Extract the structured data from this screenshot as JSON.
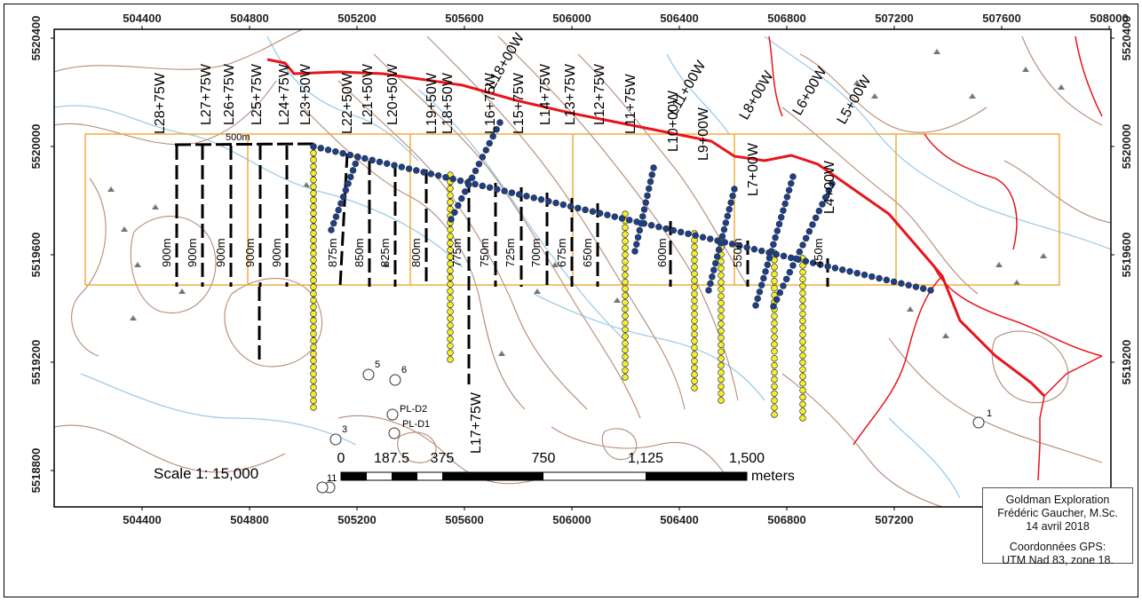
{
  "map": {
    "x_ticks": [
      "504400",
      "504800",
      "505200",
      "505600",
      "506000",
      "506400",
      "506800",
      "507200",
      "507600",
      "508000"
    ],
    "x_ticks_bottom": [
      "504400",
      "504800",
      "505200",
      "505600",
      "506000",
      "506400",
      "506800",
      "507200"
    ],
    "y_ticks": [
      "5520400",
      "5520000",
      "5519600",
      "5519200",
      "5518800"
    ],
    "y_ticks_right": [
      "5520400",
      "5520000",
      "5519600",
      "5519200"
    ],
    "lines": [
      {
        "label": "L28+75W",
        "length": "900m"
      },
      {
        "label": "L27+75W",
        "length": "900m"
      },
      {
        "label": "L26+75W",
        "length": "900m"
      },
      {
        "label": "L25+75W",
        "length": "900m"
      },
      {
        "label": "L24+75W",
        "length": "900m"
      },
      {
        "label": "L23+50W",
        "length": ""
      },
      {
        "label": "L22+50W",
        "length": "875m"
      },
      {
        "label": "L21+50W",
        "length": "850m"
      },
      {
        "label": "L20+50W",
        "length": "825m"
      },
      {
        "label": "L19+50W",
        "length": "800m"
      },
      {
        "label": "L18+50W",
        "length": "775m"
      },
      {
        "label": "L18+00W",
        "length": ""
      },
      {
        "label": "L17+75W",
        "length": "750m"
      },
      {
        "label": "L16+75W",
        "length": "725m"
      },
      {
        "label": "L15+75W",
        "length": ""
      },
      {
        "label": "L14+75W",
        "length": "700m"
      },
      {
        "label": "L13+75W",
        "length": "675m"
      },
      {
        "label": "L12+75W",
        "length": "650m"
      },
      {
        "label": "L11+75W",
        "length": ""
      },
      {
        "label": "L11+00W",
        "length": ""
      },
      {
        "label": "L10+00W",
        "length": "600m"
      },
      {
        "label": "L9+00W",
        "length": ""
      },
      {
        "label": "L8+00W",
        "length": ""
      },
      {
        "label": "L7+00W",
        "length": "550m"
      },
      {
        "label": "L6+00W",
        "length": ""
      },
      {
        "label": "L5+00W",
        "length": ""
      },
      {
        "label": "L4+00W",
        "length": "450m"
      }
    ],
    "baseline_label": "500m",
    "points": [
      {
        "label": "1"
      },
      {
        "label": "3"
      },
      {
        "label": "5"
      },
      {
        "label": "6"
      },
      {
        "label": "PL-D2"
      },
      {
        "label": "PL-D1"
      },
      {
        "label": "11"
      }
    ],
    "scale": {
      "text": "Scale 1: 15,000",
      "ticks": [
        "0",
        "187.5",
        "375",
        "750",
        "1,125",
        "1,500"
      ],
      "unit": "meters"
    },
    "colors": {
      "road": "#e8141c",
      "grid": "#f0a020",
      "contour": "#b48a76",
      "stream": "#9fcbe8",
      "station_yellow": "#f3ef2a",
      "station_blue": "#1b3f8f"
    }
  },
  "credit": {
    "line1": "Goldman Exploration",
    "line2": "Frédéric Gaucher, M.Sc.",
    "line3": "14 avril 2018",
    "line4": "Coordonnées GPS:",
    "line5": "UTM Nad 83, zone 18."
  }
}
